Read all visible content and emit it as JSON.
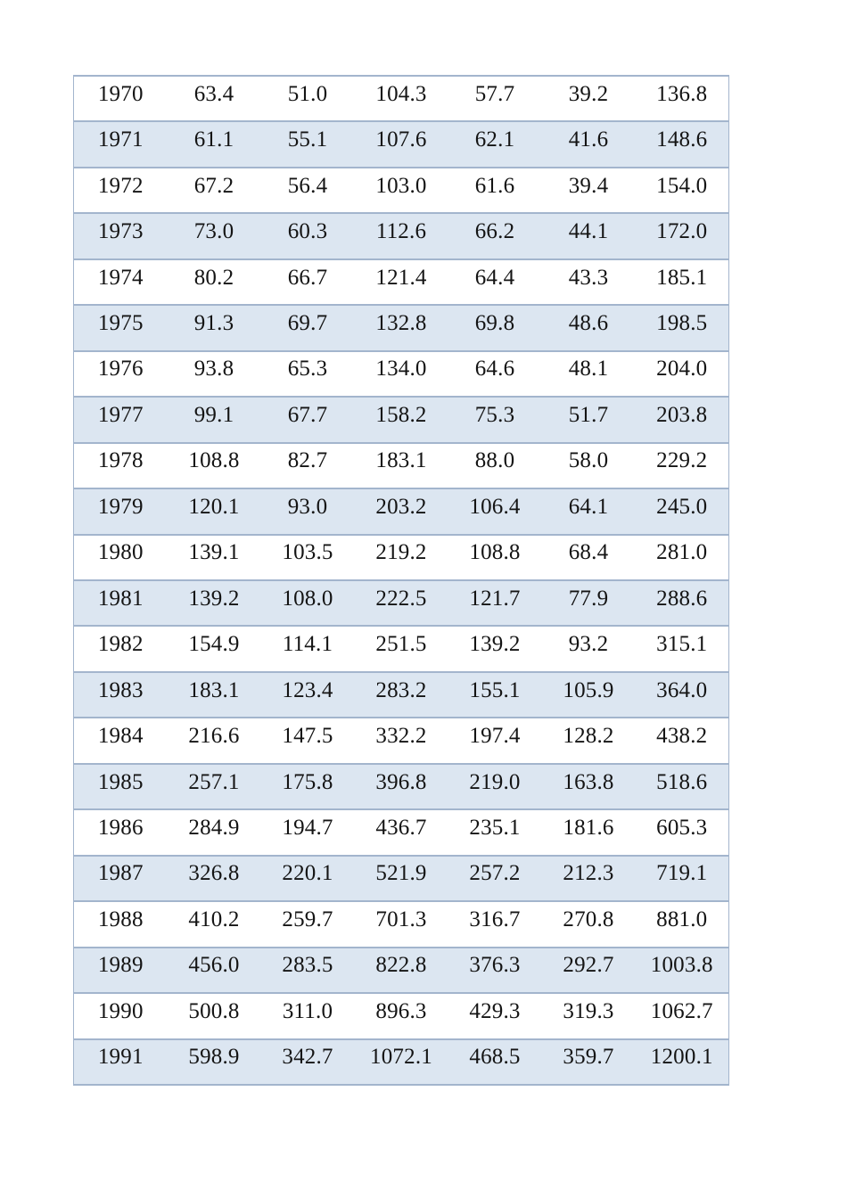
{
  "page": {
    "background_color": "#ffffff"
  },
  "table": {
    "band_color": "#dce6f1",
    "border_color": "#a3b5cd",
    "text_color": "#141414",
    "column_count": 7,
    "rows": [
      [
        "1970",
        "63.4",
        "51.0",
        "104.3",
        "57.7",
        "39.2",
        "136.8"
      ],
      [
        "1971",
        "61.1",
        "55.1",
        "107.6",
        "62.1",
        "41.6",
        "148.6"
      ],
      [
        "1972",
        "67.2",
        "56.4",
        "103.0",
        "61.6",
        "39.4",
        "154.0"
      ],
      [
        "1973",
        "73.0",
        "60.3",
        "112.6",
        "66.2",
        "44.1",
        "172.0"
      ],
      [
        "1974",
        "80.2",
        "66.7",
        "121.4",
        "64.4",
        "43.3",
        "185.1"
      ],
      [
        "1975",
        "91.3",
        "69.7",
        "132.8",
        "69.8",
        "48.6",
        "198.5"
      ],
      [
        "1976",
        "93.8",
        "65.3",
        "134.0",
        "64.6",
        "48.1",
        "204.0"
      ],
      [
        "1977",
        "99.1",
        "67.7",
        "158.2",
        "75.3",
        "51.7",
        "203.8"
      ],
      [
        "1978",
        "108.8",
        "82.7",
        "183.1",
        "88.0",
        "58.0",
        "229.2"
      ],
      [
        "1979",
        "120.1",
        "93.0",
        "203.2",
        "106.4",
        "64.1",
        "245.0"
      ],
      [
        "1980",
        "139.1",
        "103.5",
        "219.2",
        "108.8",
        "68.4",
        "281.0"
      ],
      [
        "1981",
        "139.2",
        "108.0",
        "222.5",
        "121.7",
        "77.9",
        "288.6"
      ],
      [
        "1982",
        "154.9",
        "114.1",
        "251.5",
        "139.2",
        "93.2",
        "315.1"
      ],
      [
        "1983",
        "183.1",
        "123.4",
        "283.2",
        "155.1",
        "105.9",
        "364.0"
      ],
      [
        "1984",
        "216.6",
        "147.5",
        "332.2",
        "197.4",
        "128.2",
        "438.2"
      ],
      [
        "1985",
        "257.1",
        "175.8",
        "396.8",
        "219.0",
        "163.8",
        "518.6"
      ],
      [
        "1986",
        "284.9",
        "194.7",
        "436.7",
        "235.1",
        "181.6",
        "605.3"
      ],
      [
        "1987",
        "326.8",
        "220.1",
        "521.9",
        "257.2",
        "212.3",
        "719.1"
      ],
      [
        "1988",
        "410.2",
        "259.7",
        "701.3",
        "316.7",
        "270.8",
        "881.0"
      ],
      [
        "1989",
        "456.0",
        "283.5",
        "822.8",
        "376.3",
        "292.7",
        "1003.8"
      ],
      [
        "1990",
        "500.8",
        "311.0",
        "896.3",
        "429.3",
        "319.3",
        "1062.7"
      ],
      [
        "1991",
        "598.9",
        "342.7",
        "1072.1",
        "468.5",
        "359.7",
        "1200.1"
      ]
    ]
  }
}
